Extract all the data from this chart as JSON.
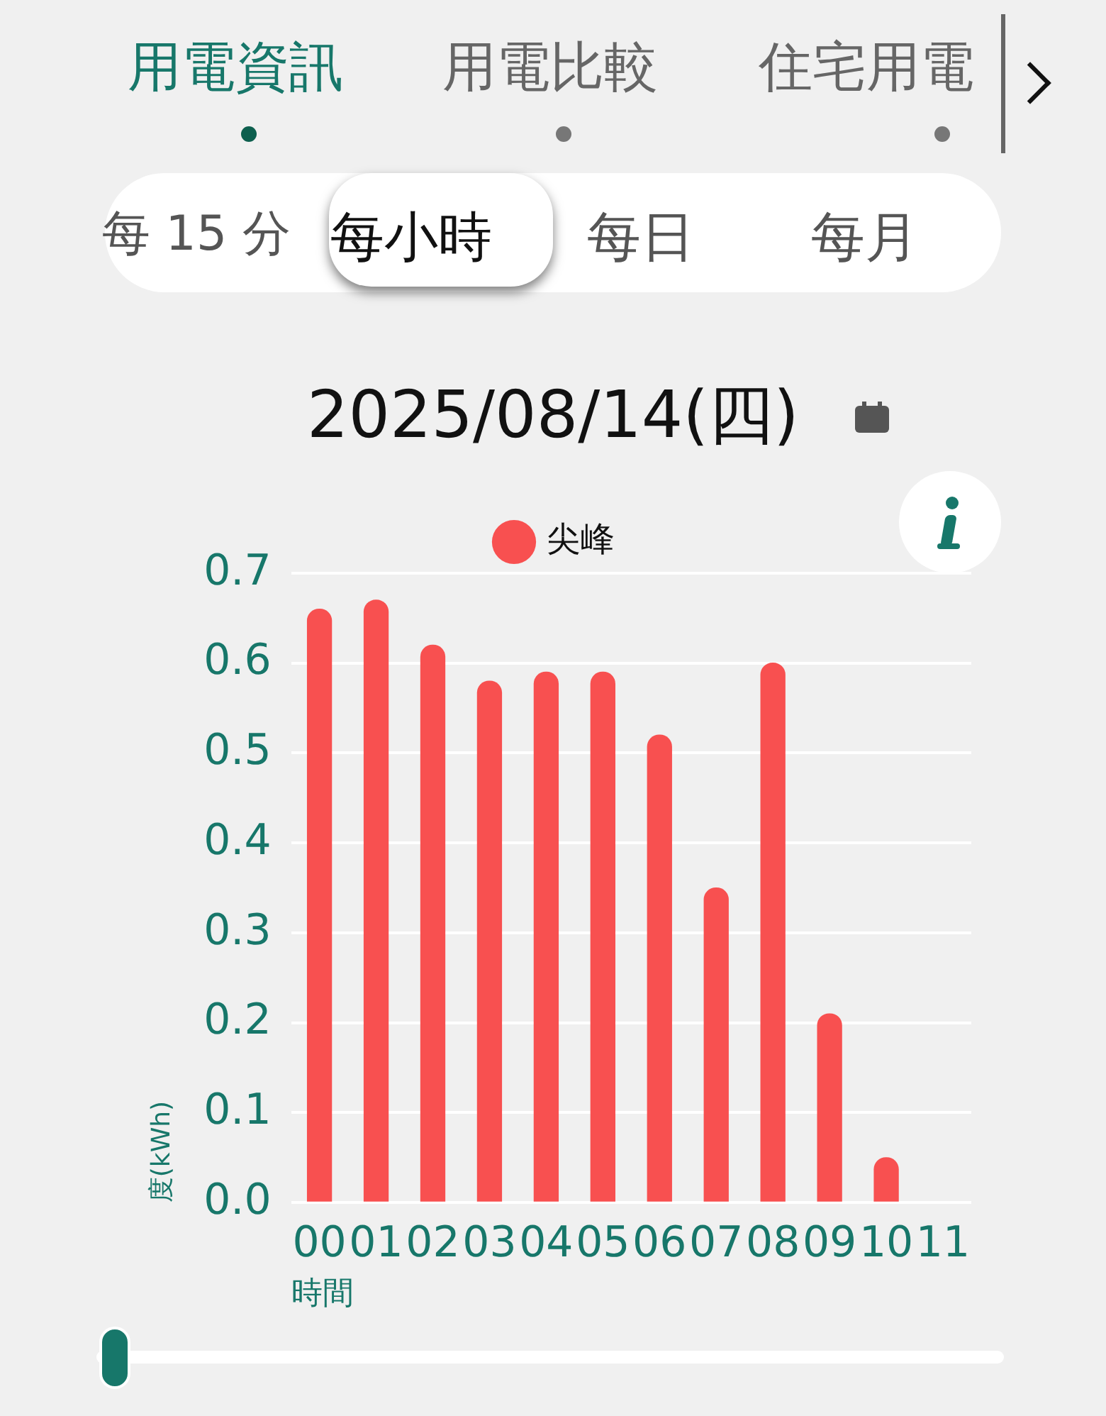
{
  "chart_data": {
    "type": "bar",
    "title": "2025/08/14(四)",
    "xlabel": "時間",
    "ylabel": "度(kWh)",
    "categories": [
      "00",
      "01",
      "02",
      "03",
      "04",
      "05",
      "06",
      "07",
      "08",
      "09",
      "10",
      "11"
    ],
    "series": [
      {
        "name": "尖峰",
        "color": "#f85050",
        "values": [
          0.66,
          0.67,
          0.62,
          0.58,
          0.59,
          0.59,
          0.52,
          0.35,
          0.6,
          0.21,
          0.05,
          null
        ]
      }
    ],
    "ylim": [
      0,
      0.7
    ],
    "yticks": [
      {
        "value": 0,
        "label": "0.0"
      },
      0.1,
      0.2,
      0.3,
      0.4,
      0.5,
      0.6,
      0.7
    ],
    "grid": "y",
    "legend": "top",
    "annotations": [
      "用電資訊",
      "用電比較",
      "住宅用電",
      "每 15 分",
      "每小時",
      "每日",
      "每月"
    ]
  }
}
